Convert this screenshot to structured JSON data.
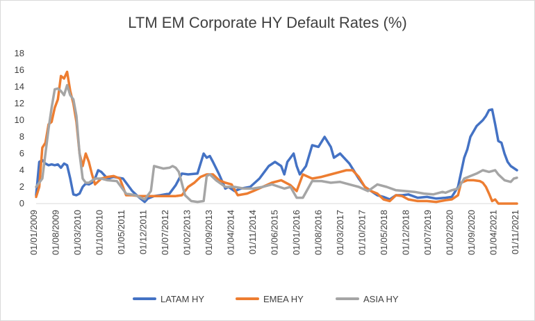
{
  "chart_data": {
    "type": "line",
    "title": "LTM EM Corporate HY Default Rates (%)",
    "xlabel": "",
    "ylabel": "",
    "ylim": [
      0,
      18
    ],
    "yticks": [
      0,
      2,
      4,
      6,
      8,
      10,
      12,
      14,
      16,
      18
    ],
    "xlim": [
      "2009-01",
      "2021-12"
    ],
    "x_tick_labels": [
      "01/01/2009",
      "01/08/2009",
      "01/03/2010",
      "01/10/2010",
      "01/05/2011",
      "01/12/2011",
      "01/07/2012",
      "01/02/2013",
      "01/09/2013",
      "01/04/2014",
      "01/11/2014",
      "01/06/2015",
      "01/01/2016",
      "01/08/2016",
      "01/03/2017",
      "01/10/2017",
      "01/05/2018",
      "01/12/2018",
      "01/07/2019",
      "01/02/2020",
      "01/09/2020",
      "01/04/2021",
      "01/11/2021"
    ],
    "grid": false,
    "legend_position": "bottom",
    "series": [
      {
        "name": "LATAM HY",
        "color": "#4472c4",
        "x": [
          "2009-01",
          "2009-02",
          "2009-03",
          "2009-04",
          "2009-05",
          "2009-06",
          "2009-07",
          "2009-08",
          "2009-09",
          "2009-10",
          "2009-11",
          "2009-12",
          "2010-01",
          "2010-02",
          "2010-03",
          "2010-04",
          "2010-05",
          "2010-06",
          "2010-07",
          "2010-08",
          "2010-09",
          "2010-10",
          "2010-12",
          "2011-02",
          "2011-05",
          "2011-08",
          "2011-10",
          "2011-12",
          "2012-01",
          "2012-03",
          "2012-05",
          "2012-08",
          "2012-10",
          "2012-12",
          "2013-02",
          "2013-05",
          "2013-07",
          "2013-08",
          "2013-09",
          "2013-10",
          "2013-12",
          "2014-02",
          "2014-03",
          "2014-05",
          "2014-07",
          "2014-10",
          "2015-01",
          "2015-04",
          "2015-06",
          "2015-08",
          "2015-09",
          "2015-10",
          "2015-12",
          "2016-01",
          "2016-02",
          "2016-04",
          "2016-06",
          "2016-08",
          "2016-10",
          "2016-12",
          "2017-01",
          "2017-03",
          "2017-06",
          "2017-09",
          "2017-11",
          "2018-01",
          "2018-03",
          "2018-05",
          "2018-07",
          "2018-09",
          "2018-11",
          "2019-01",
          "2019-04",
          "2019-07",
          "2019-10",
          "2020-01",
          "2020-03",
          "2020-05",
          "2020-07",
          "2020-08",
          "2020-09",
          "2020-11",
          "2021-01",
          "2021-02",
          "2021-03",
          "2021-04",
          "2021-05",
          "2021-06",
          "2021-07",
          "2021-08",
          "2021-09",
          "2021-10",
          "2021-12"
        ],
        "values": [
          1.0,
          5.0,
          5.2,
          4.8,
          4.6,
          4.7,
          4.6,
          4.7,
          4.3,
          4.8,
          4.6,
          3.0,
          1.1,
          1.0,
          1.2,
          2.0,
          2.4,
          2.3,
          2.5,
          3.0,
          4.0,
          3.8,
          3.0,
          3.2,
          3.0,
          1.5,
          0.8,
          0.2,
          0.6,
          0.9,
          1.0,
          1.2,
          2.2,
          3.6,
          3.5,
          3.6,
          6.0,
          5.5,
          5.7,
          5.0,
          3.5,
          1.8,
          2.0,
          1.5,
          1.8,
          2.0,
          3.0,
          4.5,
          5.0,
          4.5,
          3.5,
          5.0,
          6.0,
          4.5,
          3.5,
          4.5,
          7.0,
          6.8,
          8.0,
          6.8,
          5.5,
          6.0,
          4.8,
          3.0,
          2.0,
          1.5,
          1.0,
          0.8,
          0.5,
          1.0,
          1.0,
          1.1,
          0.7,
          0.8,
          0.6,
          0.7,
          0.8,
          2.0,
          5.5,
          6.5,
          8.0,
          9.3,
          10.0,
          10.5,
          11.2,
          11.3,
          9.5,
          7.5,
          7.3,
          6.0,
          5.0,
          4.5,
          4.0
        ]
      },
      {
        "name": "EMEA HY",
        "color": "#ed7d31",
        "x": [
          "2009-01",
          "2009-02",
          "2009-03",
          "2009-04",
          "2009-05",
          "2009-06",
          "2009-07",
          "2009-08",
          "2009-09",
          "2009-10",
          "2009-11",
          "2009-12",
          "2010-01",
          "2010-02",
          "2010-03",
          "2010-04",
          "2010-05",
          "2010-06",
          "2010-07",
          "2010-08",
          "2010-10",
          "2010-12",
          "2011-02",
          "2011-04",
          "2011-06",
          "2011-08",
          "2011-10",
          "2011-12",
          "2012-02",
          "2012-05",
          "2012-08",
          "2012-10",
          "2012-12",
          "2013-02",
          "2013-04",
          "2013-06",
          "2013-08",
          "2013-10",
          "2013-12",
          "2014-02",
          "2014-04",
          "2014-06",
          "2014-09",
          "2014-11",
          "2015-02",
          "2015-05",
          "2015-08",
          "2015-11",
          "2016-01",
          "2016-03",
          "2016-06",
          "2016-09",
          "2016-12",
          "2017-03",
          "2017-05",
          "2017-07",
          "2017-09",
          "2017-11",
          "2018-01",
          "2018-03",
          "2018-05",
          "2018-07",
          "2018-09",
          "2018-11",
          "2019-01",
          "2019-04",
          "2019-07",
          "2019-10",
          "2020-01",
          "2020-03",
          "2020-05",
          "2020-06",
          "2020-08",
          "2020-10",
          "2020-12",
          "2021-01",
          "2021-02",
          "2021-03",
          "2021-04",
          "2021-05",
          "2021-06",
          "2021-08",
          "2021-10",
          "2021-12"
        ],
        "values": [
          0.8,
          2.0,
          6.7,
          7.3,
          9.5,
          9.8,
          11.5,
          12.5,
          15.3,
          15.0,
          15.8,
          13.5,
          12.0,
          9.8,
          6.0,
          4.5,
          6.0,
          5.0,
          3.5,
          2.3,
          3.0,
          3.2,
          3.3,
          3.0,
          1.0,
          1.0,
          0.9,
          0.9,
          0.9,
          0.9,
          0.9,
          0.9,
          1.0,
          2.0,
          2.5,
          3.2,
          3.5,
          3.5,
          2.8,
          2.5,
          2.3,
          1.0,
          1.2,
          1.5,
          2.0,
          2.5,
          2.8,
          2.2,
          1.5,
          3.5,
          3.0,
          3.2,
          3.5,
          3.8,
          4.0,
          4.0,
          3.2,
          2.0,
          1.5,
          1.2,
          0.5,
          0.3,
          1.0,
          0.9,
          0.5,
          0.3,
          0.3,
          0.2,
          0.4,
          0.5,
          1.0,
          2.5,
          2.8,
          2.8,
          2.7,
          2.5,
          2.0,
          1.2,
          0.3,
          0.5,
          0.0,
          0.0,
          0.0,
          0.0
        ]
      },
      {
        "name": "ASIA HY",
        "color": "#a5a5a5",
        "x": [
          "2009-01",
          "2009-02",
          "2009-03",
          "2009-04",
          "2009-05",
          "2009-06",
          "2009-07",
          "2009-08",
          "2009-09",
          "2009-10",
          "2009-11",
          "2009-12",
          "2010-01",
          "2010-02",
          "2010-03",
          "2010-04",
          "2010-05",
          "2010-06",
          "2010-08",
          "2010-10",
          "2010-12",
          "2011-03",
          "2011-06",
          "2011-09",
          "2011-12",
          "2012-02",
          "2012-03",
          "2012-06",
          "2012-08",
          "2012-09",
          "2012-10",
          "2012-11",
          "2013-01",
          "2013-03",
          "2013-05",
          "2013-07",
          "2013-08",
          "2013-09",
          "2013-11",
          "2014-02",
          "2014-05",
          "2014-08",
          "2014-11",
          "2015-02",
          "2015-05",
          "2015-09",
          "2015-11",
          "2016-01",
          "2016-03",
          "2016-06",
          "2016-09",
          "2016-12",
          "2017-03",
          "2017-06",
          "2017-09",
          "2017-12",
          "2018-03",
          "2018-06",
          "2018-09",
          "2018-12",
          "2019-03",
          "2019-06",
          "2019-09",
          "2019-12",
          "2020-01",
          "2020-03",
          "2020-05",
          "2020-07",
          "2020-09",
          "2020-11",
          "2021-01",
          "2021-03",
          "2021-05",
          "2021-06",
          "2021-08",
          "2021-10",
          "2021-11",
          "2021-12"
        ],
        "values": [
          2.0,
          2.5,
          3.0,
          6.0,
          9.0,
          11.5,
          13.7,
          13.8,
          13.5,
          13.0,
          14.2,
          13.0,
          12.5,
          10.5,
          6.0,
          3.0,
          2.5,
          2.5,
          3.0,
          3.0,
          2.8,
          2.7,
          1.2,
          1.0,
          0.5,
          1.5,
          4.5,
          4.2,
          4.3,
          4.5,
          4.3,
          3.8,
          1.0,
          0.3,
          0.2,
          0.3,
          3.3,
          3.5,
          2.8,
          2.0,
          2.0,
          1.8,
          1.8,
          2.0,
          2.3,
          1.8,
          2.0,
          0.7,
          0.7,
          2.7,
          2.7,
          2.5,
          2.6,
          2.3,
          2.0,
          1.5,
          2.3,
          2.0,
          1.6,
          1.5,
          1.4,
          1.2,
          1.1,
          1.4,
          1.3,
          1.6,
          1.8,
          3.0,
          3.3,
          3.6,
          4.0,
          3.8,
          4.0,
          3.5,
          2.8,
          2.6,
          3.0,
          3.1
        ]
      }
    ]
  }
}
